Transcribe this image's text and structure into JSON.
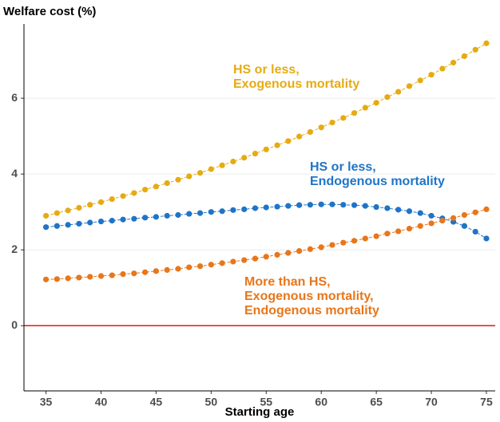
{
  "chart_data": {
    "type": "line",
    "y_title": "Welfare cost (%)",
    "x_title": "Starting age",
    "x": [
      35,
      36,
      37,
      38,
      39,
      40,
      41,
      42,
      43,
      44,
      45,
      46,
      47,
      48,
      49,
      50,
      51,
      52,
      53,
      54,
      55,
      56,
      57,
      58,
      59,
      60,
      61,
      62,
      63,
      64,
      65,
      66,
      67,
      68,
      69,
      70,
      71,
      72,
      73,
      74,
      75
    ],
    "series": [
      {
        "name": "HS or less, Exogenous mortality",
        "color": "#e6ab12",
        "values": [
          2.9,
          2.97,
          3.04,
          3.11,
          3.19,
          3.26,
          3.34,
          3.42,
          3.5,
          3.59,
          3.67,
          3.76,
          3.85,
          3.94,
          4.03,
          4.13,
          4.23,
          4.33,
          4.43,
          4.54,
          4.65,
          4.76,
          4.87,
          4.99,
          5.11,
          5.23,
          5.36,
          5.48,
          5.61,
          5.75,
          5.88,
          6.03,
          6.17,
          6.32,
          6.47,
          6.62,
          6.78,
          6.94,
          7.11,
          7.28,
          7.45
        ]
      },
      {
        "name": "HS or less, Endogenous mortality",
        "color": "#1f74c8",
        "values": [
          2.6,
          2.63,
          2.66,
          2.69,
          2.72,
          2.75,
          2.77,
          2.8,
          2.82,
          2.85,
          2.87,
          2.9,
          2.92,
          2.95,
          2.97,
          3.0,
          3.02,
          3.05,
          3.07,
          3.1,
          3.12,
          3.14,
          3.16,
          3.18,
          3.19,
          3.2,
          3.2,
          3.19,
          3.18,
          3.16,
          3.13,
          3.1,
          3.06,
          3.02,
          2.97,
          2.9,
          2.83,
          2.74,
          2.63,
          2.48,
          2.3
        ]
      },
      {
        "name": "More than HS, Exogenous mortality, Endogenous mortality",
        "color": "#e8761a",
        "values": [
          1.22,
          1.23,
          1.25,
          1.27,
          1.29,
          1.31,
          1.33,
          1.36,
          1.38,
          1.41,
          1.44,
          1.47,
          1.5,
          1.54,
          1.57,
          1.61,
          1.65,
          1.69,
          1.73,
          1.77,
          1.82,
          1.87,
          1.92,
          1.97,
          2.02,
          2.07,
          2.13,
          2.19,
          2.24,
          2.3,
          2.36,
          2.43,
          2.49,
          2.56,
          2.63,
          2.7,
          2.77,
          2.84,
          2.92,
          2.99,
          3.07
        ]
      }
    ],
    "annotations": [
      {
        "lines": [
          "HS or less,",
          "Exogenous mortality"
        ],
        "color": "#e6ab12"
      },
      {
        "lines": [
          "HS or less,",
          "Endogenous mortality"
        ],
        "color": "#1f74c8"
      },
      {
        "lines": [
          "More than HS,",
          "Exogenous mortality,",
          "Endogenous mortality"
        ],
        "color": "#e8761a"
      }
    ],
    "reference_line": {
      "value": 0,
      "color": "#e8141a"
    },
    "xlim": [
      33,
      75.8
    ],
    "ylim": [
      -1.72,
      7.96
    ],
    "xticks": [
      35,
      40,
      45,
      50,
      55,
      60,
      65,
      70,
      75
    ],
    "yticks": [
      0,
      2,
      4,
      6
    ],
    "grid": true
  }
}
